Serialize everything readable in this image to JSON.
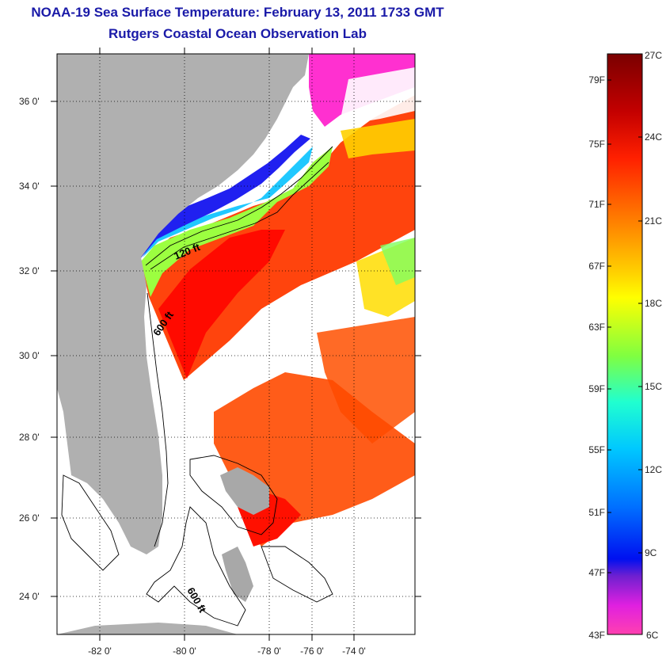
{
  "header": {
    "title": "NOAA-19 Sea Surface Temperature:  February 13, 2011 1733 GMT",
    "subtitle": "Rutgers Coastal Ocean Observation Lab"
  },
  "map": {
    "lat_labels": [
      "36 0'",
      "34 0'",
      "32 0'",
      "30 0'",
      "28 0'",
      "26 0'",
      "24 0'"
    ],
    "lon_labels": [
      "-82 0'",
      "-80 0'",
      "-78 0'",
      "-76 0'",
      "-74 0'"
    ],
    "contour_labels": [
      "120 ft",
      "600 ft",
      "600 ft"
    ],
    "land_color": "#b0b0b0"
  },
  "colorbar": {
    "fahrenheit_labels": [
      "79F",
      "75F",
      "71F",
      "67F",
      "63F",
      "59F",
      "55F",
      "51F",
      "47F",
      "43F"
    ],
    "celsius_labels": [
      "27C",
      "24C",
      "21C",
      "18C",
      "15C",
      "12C",
      "9C",
      "6C"
    ],
    "colors": [
      "#7a0000",
      "#c80000",
      "#ff2a00",
      "#ff7a00",
      "#ffc800",
      "#ffff00",
      "#a0ff40",
      "#40ffc0",
      "#00e0ff",
      "#0090ff",
      "#0030ff",
      "#2010d8",
      "#a020e0",
      "#ff20d0",
      "#ff40c0"
    ]
  }
}
